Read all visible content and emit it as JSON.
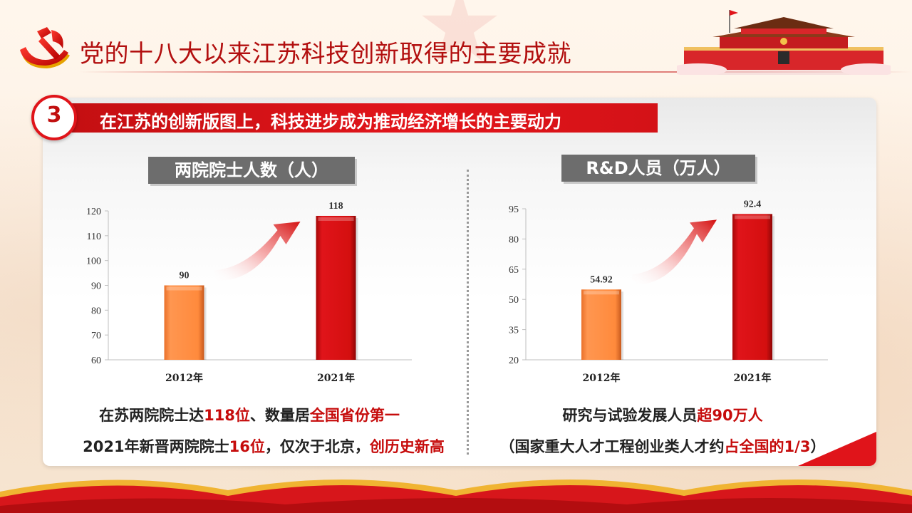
{
  "header": {
    "title": "党的十八大以来江苏科技创新取得的主要成就"
  },
  "section": {
    "number": "3",
    "banner": "在江苏的创新版图上，科技进步成为推动经济增长的主要动力"
  },
  "colors": {
    "accent_red": "#e0141a",
    "dark_red": "#c60c0c",
    "bar_2012": "#ff8c42",
    "bar_2021": "#d40f0f",
    "title_box": "#6d6d6d"
  },
  "chart_data": [
    {
      "type": "bar",
      "title": "两院院士人数（人）",
      "categories": [
        "2012年",
        "2021年"
      ],
      "values": [
        90,
        118
      ],
      "value_labels": [
        "90",
        "118"
      ],
      "ylim": [
        60,
        120
      ],
      "yticks": [
        60,
        70,
        80,
        90,
        100,
        110,
        120
      ],
      "grid": false,
      "annotation": "rising arrow between bars"
    },
    {
      "type": "bar",
      "title": "R&D人员（万人）",
      "categories": [
        "2012年",
        "2021年"
      ],
      "values": [
        54.92,
        92.4
      ],
      "value_labels": [
        "54.92",
        "92.4"
      ],
      "ylim": [
        20,
        95
      ],
      "yticks": [
        20,
        35,
        50,
        65,
        80,
        95
      ],
      "grid": false,
      "annotation": "rising arrow between bars"
    }
  ],
  "captions": {
    "left": [
      [
        {
          "t": "在苏两院院士达",
          "hl": false
        },
        {
          "t": "118位",
          "hl": true
        },
        {
          "t": "、数量居",
          "hl": false
        },
        {
          "t": "全国省份第一",
          "hl": true
        }
      ],
      [
        {
          "t": "2021年新晋两院院士",
          "hl": false
        },
        {
          "t": "16位",
          "hl": true
        },
        {
          "t": "，仅次于北京，",
          "hl": false
        },
        {
          "t": "创历史新高",
          "hl": true
        }
      ]
    ],
    "right": [
      [
        {
          "t": "研究与试验发展人员",
          "hl": false
        },
        {
          "t": "超90万人",
          "hl": true
        }
      ],
      [
        {
          "t": "（国家重大人才工程创业类人才约",
          "hl": false
        },
        {
          "t": "占全国的1/3",
          "hl": true
        },
        {
          "t": "）",
          "hl": false
        }
      ]
    ]
  }
}
